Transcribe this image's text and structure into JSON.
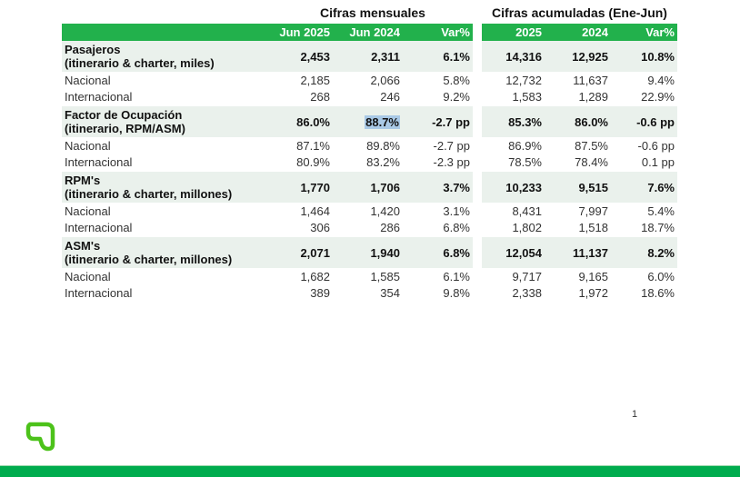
{
  "groups": {
    "monthly": "Cifras mensuales",
    "cumulative": "Cifras acumuladas (Ene-Jun)"
  },
  "headers": [
    "Jun 2025",
    "Jun 2024",
    "Var%",
    "2025",
    "2024",
    "Var%"
  ],
  "rows": [
    {
      "type": "b",
      "label1": "Pasajeros",
      "label2": "(itinerario & charter, miles)",
      "v": [
        "2,453",
        "2,311",
        "6.1%",
        "14,316",
        "12,925",
        "10.8%"
      ]
    },
    {
      "type": "n",
      "label1": "Nacional",
      "v": [
        "2,185",
        "2,066",
        "5.8%",
        "12,732",
        "11,637",
        "9.4%"
      ]
    },
    {
      "type": "n",
      "label1": "Internacional",
      "v": [
        "268",
        "246",
        "9.2%",
        "1,583",
        "1,289",
        "22.9%"
      ]
    },
    {
      "type": "b",
      "label1": "Factor de Ocupación",
      "label2": "(itinerario, RPM/ASM)",
      "v": [
        "86.0%",
        "88.7%",
        "-2.7 pp",
        "85.3%",
        "86.0%",
        "-0.6 pp"
      ]
    },
    {
      "type": "n",
      "label1": "Nacional",
      "v": [
        "87.1%",
        "89.8%",
        "-2.7 pp",
        "86.9%",
        "87.5%",
        "-0.6 pp"
      ]
    },
    {
      "type": "n",
      "label1": "Internacional",
      "v": [
        "80.9%",
        "83.2%",
        "-2.3 pp",
        "78.5%",
        "78.4%",
        "0.1 pp"
      ]
    },
    {
      "type": "b",
      "label1": "RPM's",
      "label2": "(itinerario & charter, millones)",
      "v": [
        "1,770",
        "1,706",
        "3.7%",
        "10,233",
        "9,515",
        "7.6%"
      ]
    },
    {
      "type": "n",
      "label1": "Nacional",
      "v": [
        "1,464",
        "1,420",
        "3.1%",
        "8,431",
        "7,997",
        "5.4%"
      ]
    },
    {
      "type": "n",
      "label1": "Internacional",
      "v": [
        "306",
        "286",
        "6.8%",
        "1,802",
        "1,518",
        "18.7%"
      ]
    },
    {
      "type": "b",
      "label1": "ASM's",
      "label2": "(itinerario & charter, millones)",
      "v": [
        "2,071",
        "1,940",
        "6.8%",
        "12,054",
        "11,137",
        "8.2%"
      ]
    },
    {
      "type": "n",
      "label1": "Nacional",
      "v": [
        "1,682",
        "1,585",
        "6.1%",
        "9,717",
        "9,165",
        "6.0%"
      ]
    },
    {
      "type": "n",
      "label1": "Internacional",
      "v": [
        "389",
        "354",
        "9.8%",
        "2,338",
        "1,972",
        "18.6%"
      ]
    }
  ],
  "page_number": "1",
  "colors": {
    "header": "#22b14c",
    "band": "#eaf1ec",
    "footer": "#00ac4e"
  }
}
